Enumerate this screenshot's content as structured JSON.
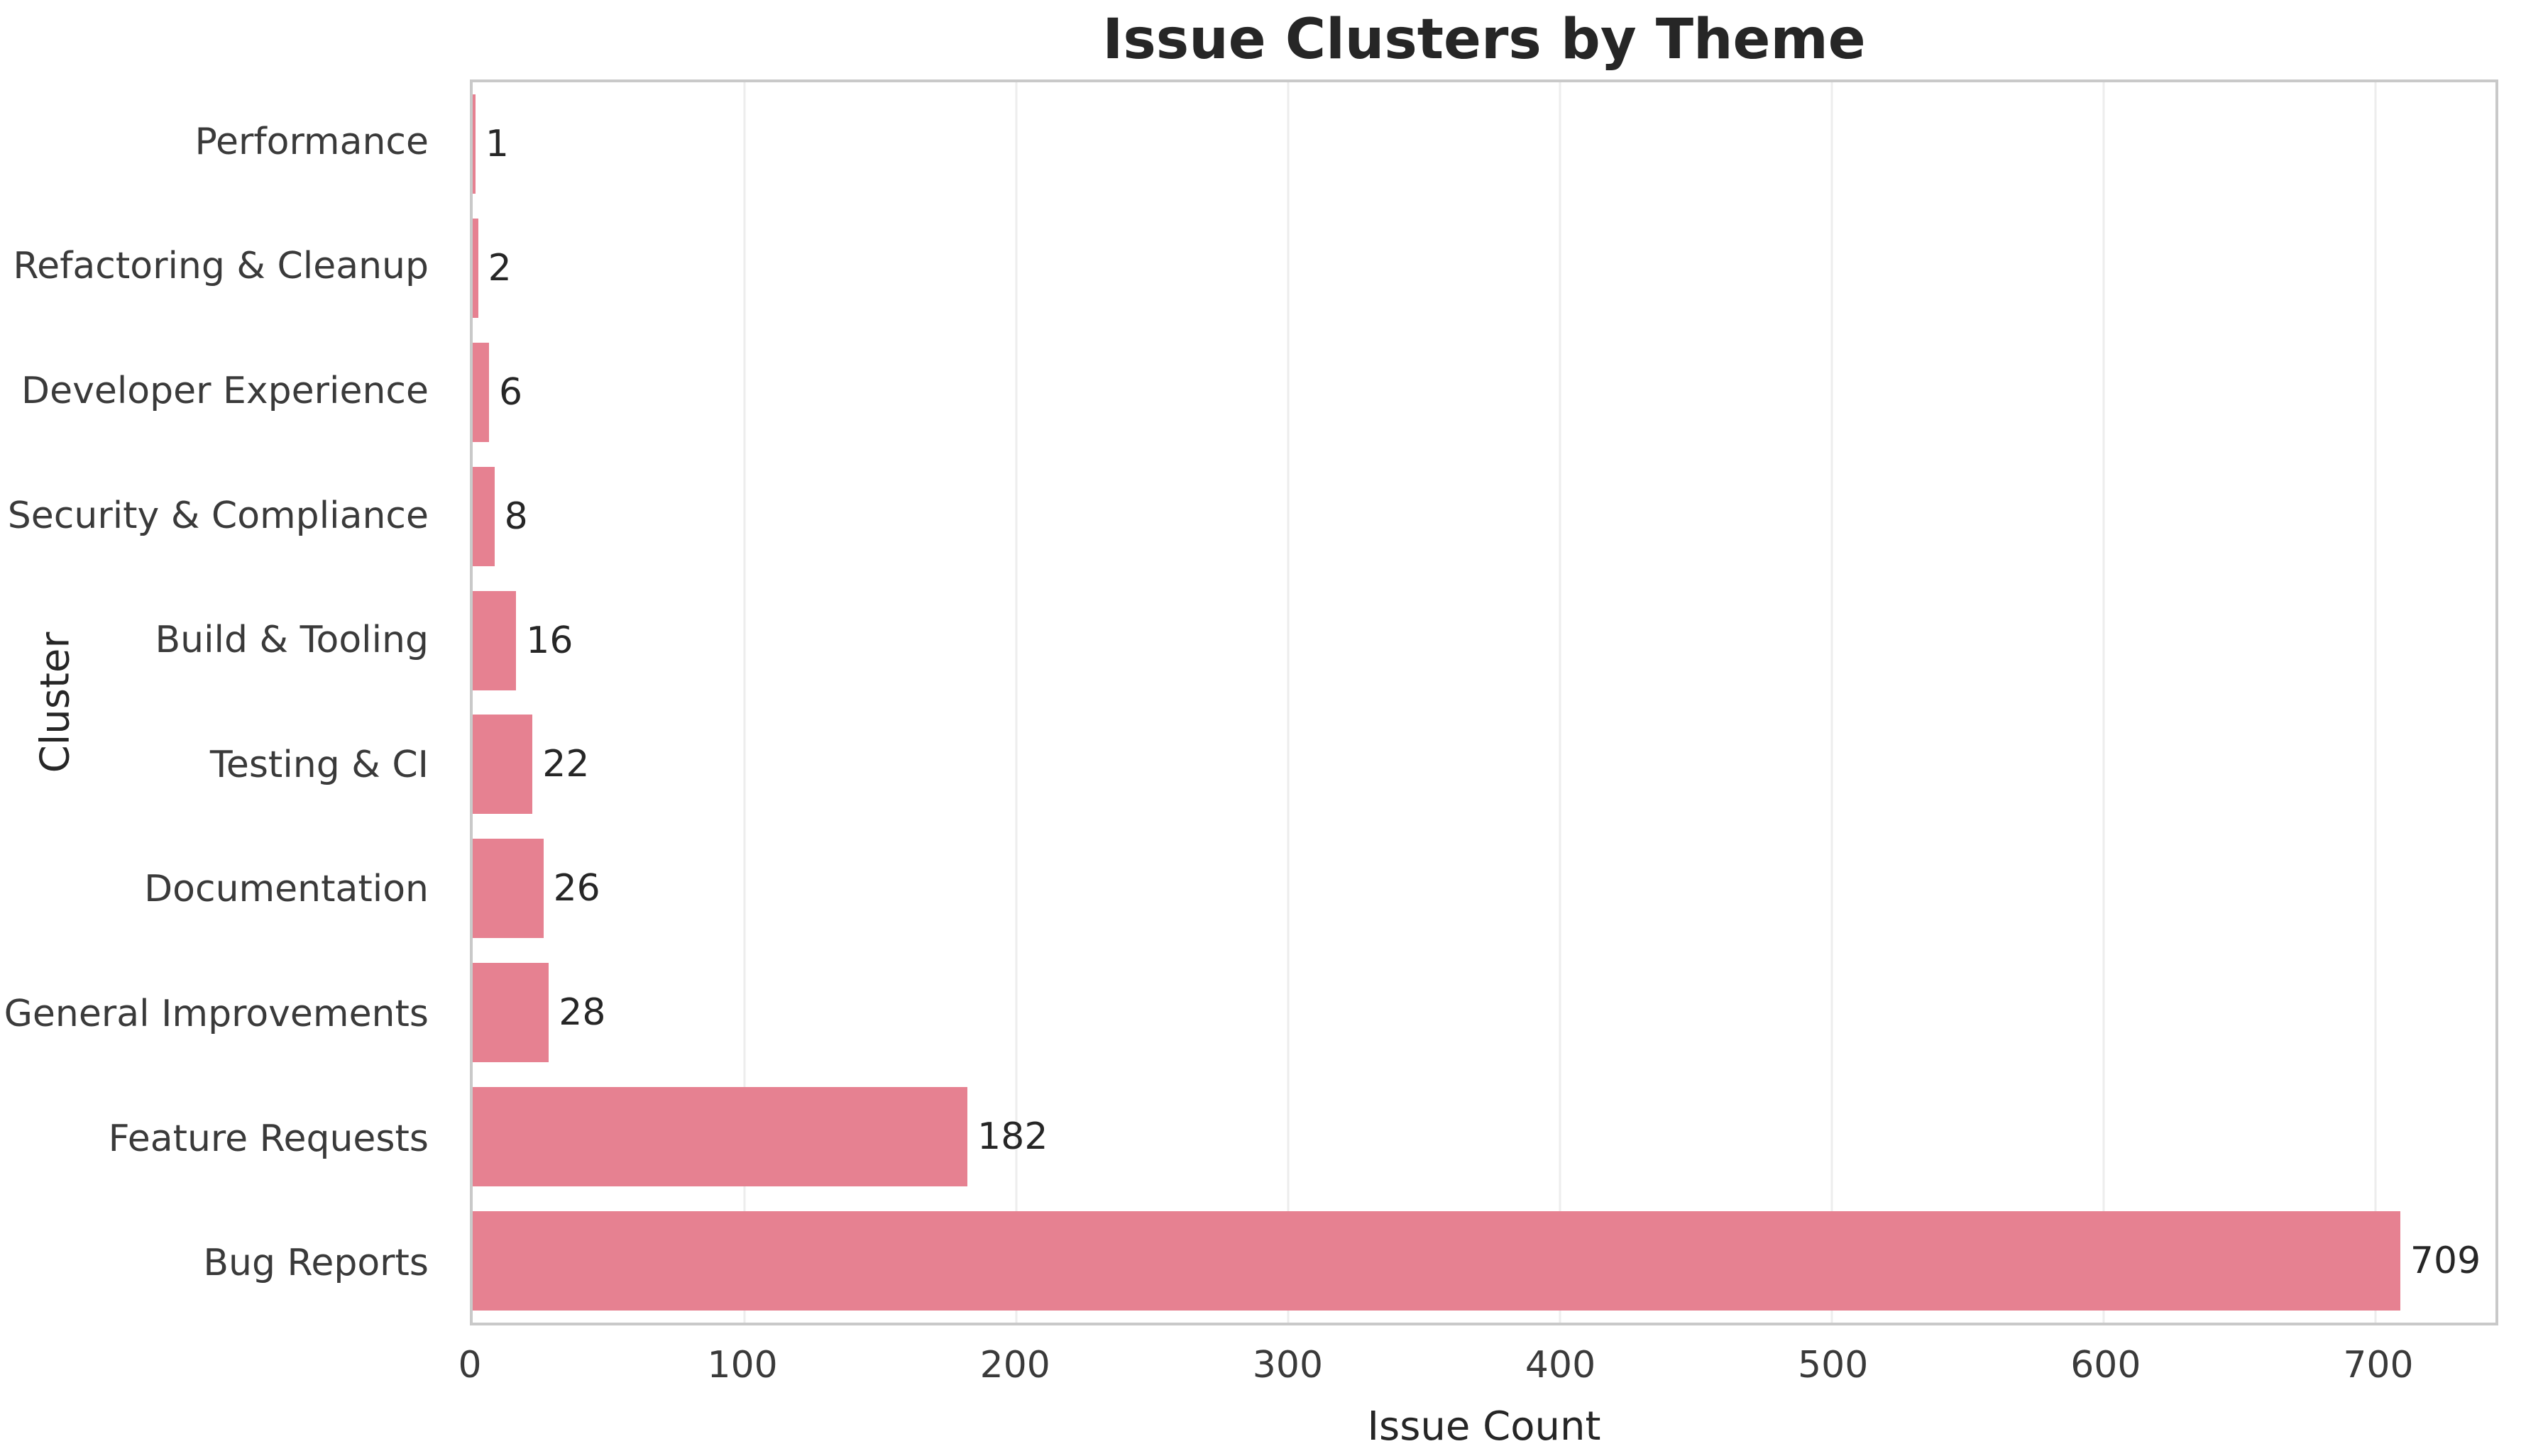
{
  "chart_data": {
    "type": "bar",
    "orientation": "horizontal",
    "title": "Issue Clusters by Theme",
    "xlabel": "Issue Count",
    "ylabel": "Cluster",
    "categories": [
      "Performance",
      "Refactoring & Cleanup",
      "Developer Experience",
      "Security & Compliance",
      "Build & Tooling",
      "Testing & CI",
      "Documentation",
      "General Improvements",
      "Feature Requests",
      "Bug Reports"
    ],
    "values": [
      1,
      2,
      6,
      8,
      16,
      22,
      26,
      28,
      182,
      709
    ],
    "value_labels": [
      "1",
      "2",
      "6",
      "8",
      "16",
      "22",
      "26",
      "28",
      "182",
      "709"
    ],
    "xticks": [
      0,
      100,
      200,
      300,
      400,
      500,
      600,
      700
    ],
    "xlim": [
      0,
      744
    ],
    "grid": "vertical",
    "legend": "none",
    "colors": {
      "bar": "#e68191",
      "grid": "#ededed",
      "spine": "#c9c9c9",
      "text": "#262626",
      "tick_text": "#3a3a3a",
      "background": "#ffffff"
    }
  }
}
